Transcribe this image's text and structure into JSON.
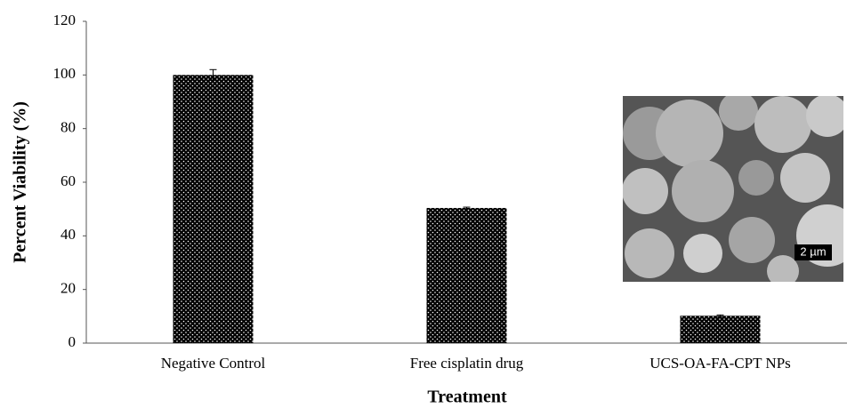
{
  "chart_data": {
    "type": "bar",
    "categories": [
      "Negative Control",
      "Free cisplatin drug",
      "UCS-OA-FA-CPT NPs"
    ],
    "values": [
      100,
      50.4,
      10.2
    ],
    "errors": [
      2,
      0.3,
      0.3
    ],
    "color": "#000000",
    "xlabel": "Treatment",
    "ylabel": "Percent Viability (%)",
    "ylim": [
      0,
      120
    ],
    "yticks": [
      0,
      20,
      40,
      60,
      80,
      100,
      120
    ]
  },
  "inset": {
    "scale_bar_label": "2 µm"
  }
}
